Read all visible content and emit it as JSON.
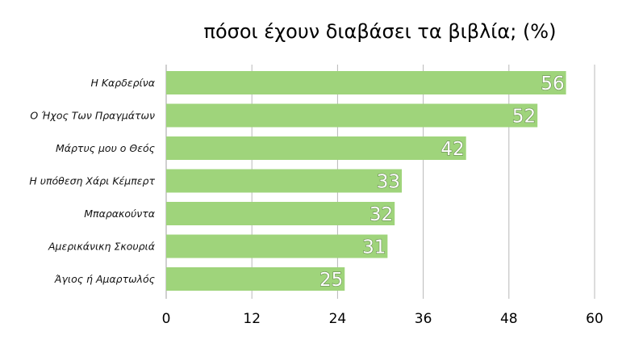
{
  "chart_data": {
    "type": "bar",
    "orientation": "horizontal",
    "title": "πόσοι έχουν διαβάσει τα βιβλία; (%)",
    "categories": [
      "Η Καρδερίνα",
      "Ο Ήχος Των Πραγμάτων",
      "Μάρτυς μου ο Θεός",
      "Η υπόθεση Χάρι Κέμπερτ",
      "Μπαρακούντα",
      "Αμερικάνικη Σκουριά",
      "Άγιος ή Αμαρτωλός"
    ],
    "values": [
      56,
      52,
      42,
      33,
      32,
      31,
      25
    ],
    "xlabel": "",
    "ylabel": "",
    "xlim": [
      0,
      60
    ],
    "xticks": [
      0,
      12,
      24,
      36,
      48,
      60
    ],
    "grid": true,
    "legend": "none",
    "data_labels": true,
    "bar_color": "#9fd47b"
  }
}
